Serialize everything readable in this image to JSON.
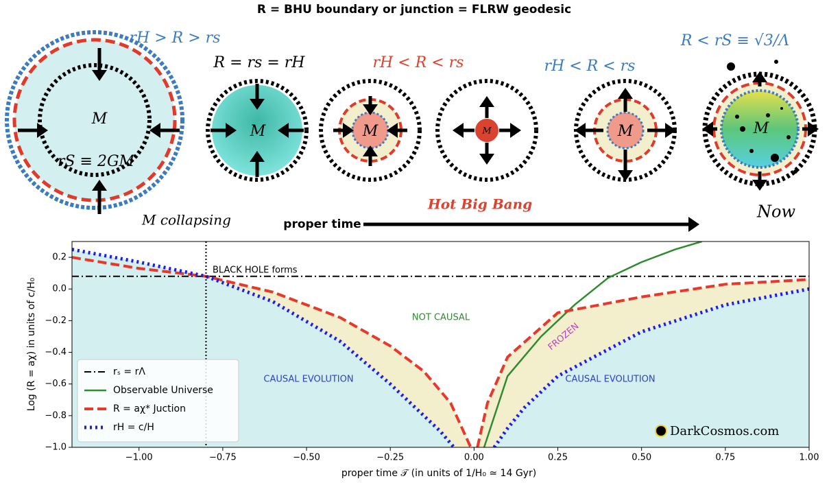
{
  "diagram": {
    "title": "R = BHU boundary or junction  = FLRW geodesic",
    "labels": [
      "rH > R > rs",
      "M",
      "rS ≡ 2GM",
      "M collapsing",
      "R = rs = rH",
      "M",
      "rH < R < rs",
      "M",
      "M",
      "rH < R < rs",
      "M",
      "R < rS ≡ √3/Λ",
      "M",
      "Hot Big Bang",
      "proper time",
      "Now"
    ]
  },
  "chart_data": {
    "type": "line",
    "xlabel": "proper time 𝒯 (in units of 1/H₀ ≃ 14 Gyr)",
    "ylabel": "Log (R = aχ)  in units of c/H₀",
    "xlim": [
      -1.2,
      1.0
    ],
    "ylim": [
      -1.0,
      0.3
    ],
    "xticks": [
      {
        "value": -1,
        "label": "−1.00"
      },
      {
        "value": -0.75,
        "label": "−0.75"
      },
      {
        "value": -0.5,
        "label": "−0.50"
      },
      {
        "value": -0.25,
        "label": "−0.25"
      },
      {
        "value": 0,
        "label": "0.00"
      },
      {
        "value": 0.25,
        "label": "0.25"
      },
      {
        "value": 0.5,
        "label": "0.50"
      },
      {
        "value": 0.75,
        "label": "0.75"
      },
      {
        "value": 1,
        "label": "1.00"
      }
    ],
    "yticks": [
      {
        "value": -1,
        "label": "−1.0"
      },
      {
        "value": -0.8,
        "label": "−0.8"
      },
      {
        "value": -0.6,
        "label": "−0.6"
      },
      {
        "value": -0.4,
        "label": "−0.4"
      },
      {
        "value": -0.2,
        "label": "−0.2"
      },
      {
        "value": 0,
        "label": "0.0"
      },
      {
        "value": 0.2,
        "label": "0.2"
      }
    ],
    "vline": -0.8,
    "series": [
      {
        "name": "rₛ = rΛ",
        "color": "#000000",
        "style": "dashdot",
        "x": [
          -1.2,
          1.0
        ],
        "values": [
          0.08,
          0.08
        ]
      },
      {
        "name": "Observable Universe",
        "color": "#2e8b2e",
        "style": "solid",
        "x": [
          0.03,
          0.1,
          0.2,
          0.3,
          0.4,
          0.5,
          0.6,
          0.68
        ],
        "values": [
          -1.0,
          -0.55,
          -0.3,
          -0.1,
          0.07,
          0.17,
          0.25,
          0.3
        ]
      },
      {
        "name": "R = aχ* Juction",
        "color": "#e8382b",
        "style": "dashed",
        "fill": "#f3efcc",
        "x": [
          -1.2,
          -1.0,
          -0.8,
          -0.6,
          -0.4,
          -0.25,
          -0.15,
          -0.07,
          -0.01,
          0.0,
          0.01,
          0.04,
          0.1,
          0.25,
          0.5,
          0.75,
          1.0
        ],
        "values": [
          0.2,
          0.13,
          0.08,
          -0.02,
          -0.18,
          -0.36,
          -0.52,
          -0.72,
          -1.0,
          null,
          -1.0,
          -0.72,
          -0.43,
          -0.15,
          -0.05,
          0.03,
          0.06
        ]
      },
      {
        "name": "rH = c/H",
        "color": "#1c1cf0",
        "style": "dotted",
        "fill": "#d3eff0",
        "x": [
          -1.2,
          -1.0,
          -0.8,
          -0.6,
          -0.4,
          -0.25,
          -0.15,
          -0.1,
          -0.06,
          0.0,
          0.06,
          0.1,
          0.15,
          0.25,
          0.5,
          0.75,
          1.0
        ],
        "values": [
          0.25,
          0.17,
          0.08,
          -0.08,
          -0.33,
          -0.6,
          -0.8,
          -0.9,
          -1.0,
          null,
          -1.0,
          -0.88,
          -0.75,
          -0.55,
          -0.27,
          -0.1,
          0.0
        ]
      }
    ],
    "annotations": [
      "BLACK HOLE forms",
      "NOT CAUSAL",
      "FROZEN",
      "CAUSAL EVOLUTION",
      "CAUSAL EVOLUTION",
      "DarkCosmos.com"
    ],
    "legend": "lower left"
  }
}
